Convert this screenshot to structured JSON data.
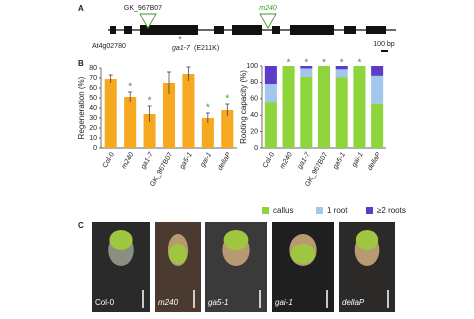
{
  "gene_diagram": {
    "panel_label": "A",
    "gene": "At4g02780",
    "insertions": [
      "GK_967B07",
      "m240"
    ],
    "mutation_marker": "*",
    "mutation": "ga1-7",
    "mutation_change": "(E211K)",
    "scale": "100 bp"
  },
  "panel_b_label": "B",
  "chart_data": [
    {
      "type": "bar",
      "y_label": "Regeneration (%)",
      "categories": [
        "Col-0",
        "m240",
        "ga1-7",
        "GK_967B07",
        "ga5-1",
        "gai-1",
        "dellaP"
      ],
      "italic_categories": [
        false,
        true,
        true,
        false,
        true,
        true,
        true
      ],
      "values": [
        69,
        51,
        34,
        65,
        74,
        30,
        38
      ],
      "errors": [
        4,
        5,
        8,
        11,
        7,
        5,
        6
      ],
      "color": "#f6a821",
      "significance_marker": "*",
      "significant": [
        false,
        true,
        true,
        false,
        false,
        true,
        true
      ],
      "ylim": [
        0,
        80
      ],
      "yticks": [
        0,
        10,
        20,
        30,
        40,
        50,
        60,
        70,
        80
      ]
    },
    {
      "type": "stacked_bar",
      "y_label": "Rooting capacity (%)",
      "categories": [
        "Col-0",
        "m240",
        "ga1-7",
        "GK_967B07",
        "ga5-1",
        "gai-1",
        "dellaP"
      ],
      "italic_categories": [
        false,
        true,
        true,
        false,
        true,
        true,
        true
      ],
      "series": [
        {
          "name": "callus",
          "color": "#8ed43c",
          "values": [
            56,
            100,
            87,
            100,
            86,
            100,
            54
          ]
        },
        {
          "name": "1 root",
          "color": "#a3c6ef",
          "values": [
            22,
            0,
            10,
            0,
            10,
            0,
            34
          ]
        },
        {
          "name": "≥2 roots",
          "color": "#5a3ec8",
          "values": [
            22,
            0,
            3,
            0,
            4,
            0,
            12
          ]
        }
      ],
      "significance_marker": "*",
      "significant": [
        false,
        true,
        true,
        true,
        true,
        true,
        false
      ],
      "ylim": [
        0,
        100
      ],
      "yticks": [
        0,
        20,
        40,
        60,
        80,
        100
      ]
    }
  ],
  "photos": {
    "panel_label": "C",
    "labels": [
      "Col-0",
      "m240",
      "ga5-1",
      "gai-1",
      "dellaP"
    ]
  }
}
